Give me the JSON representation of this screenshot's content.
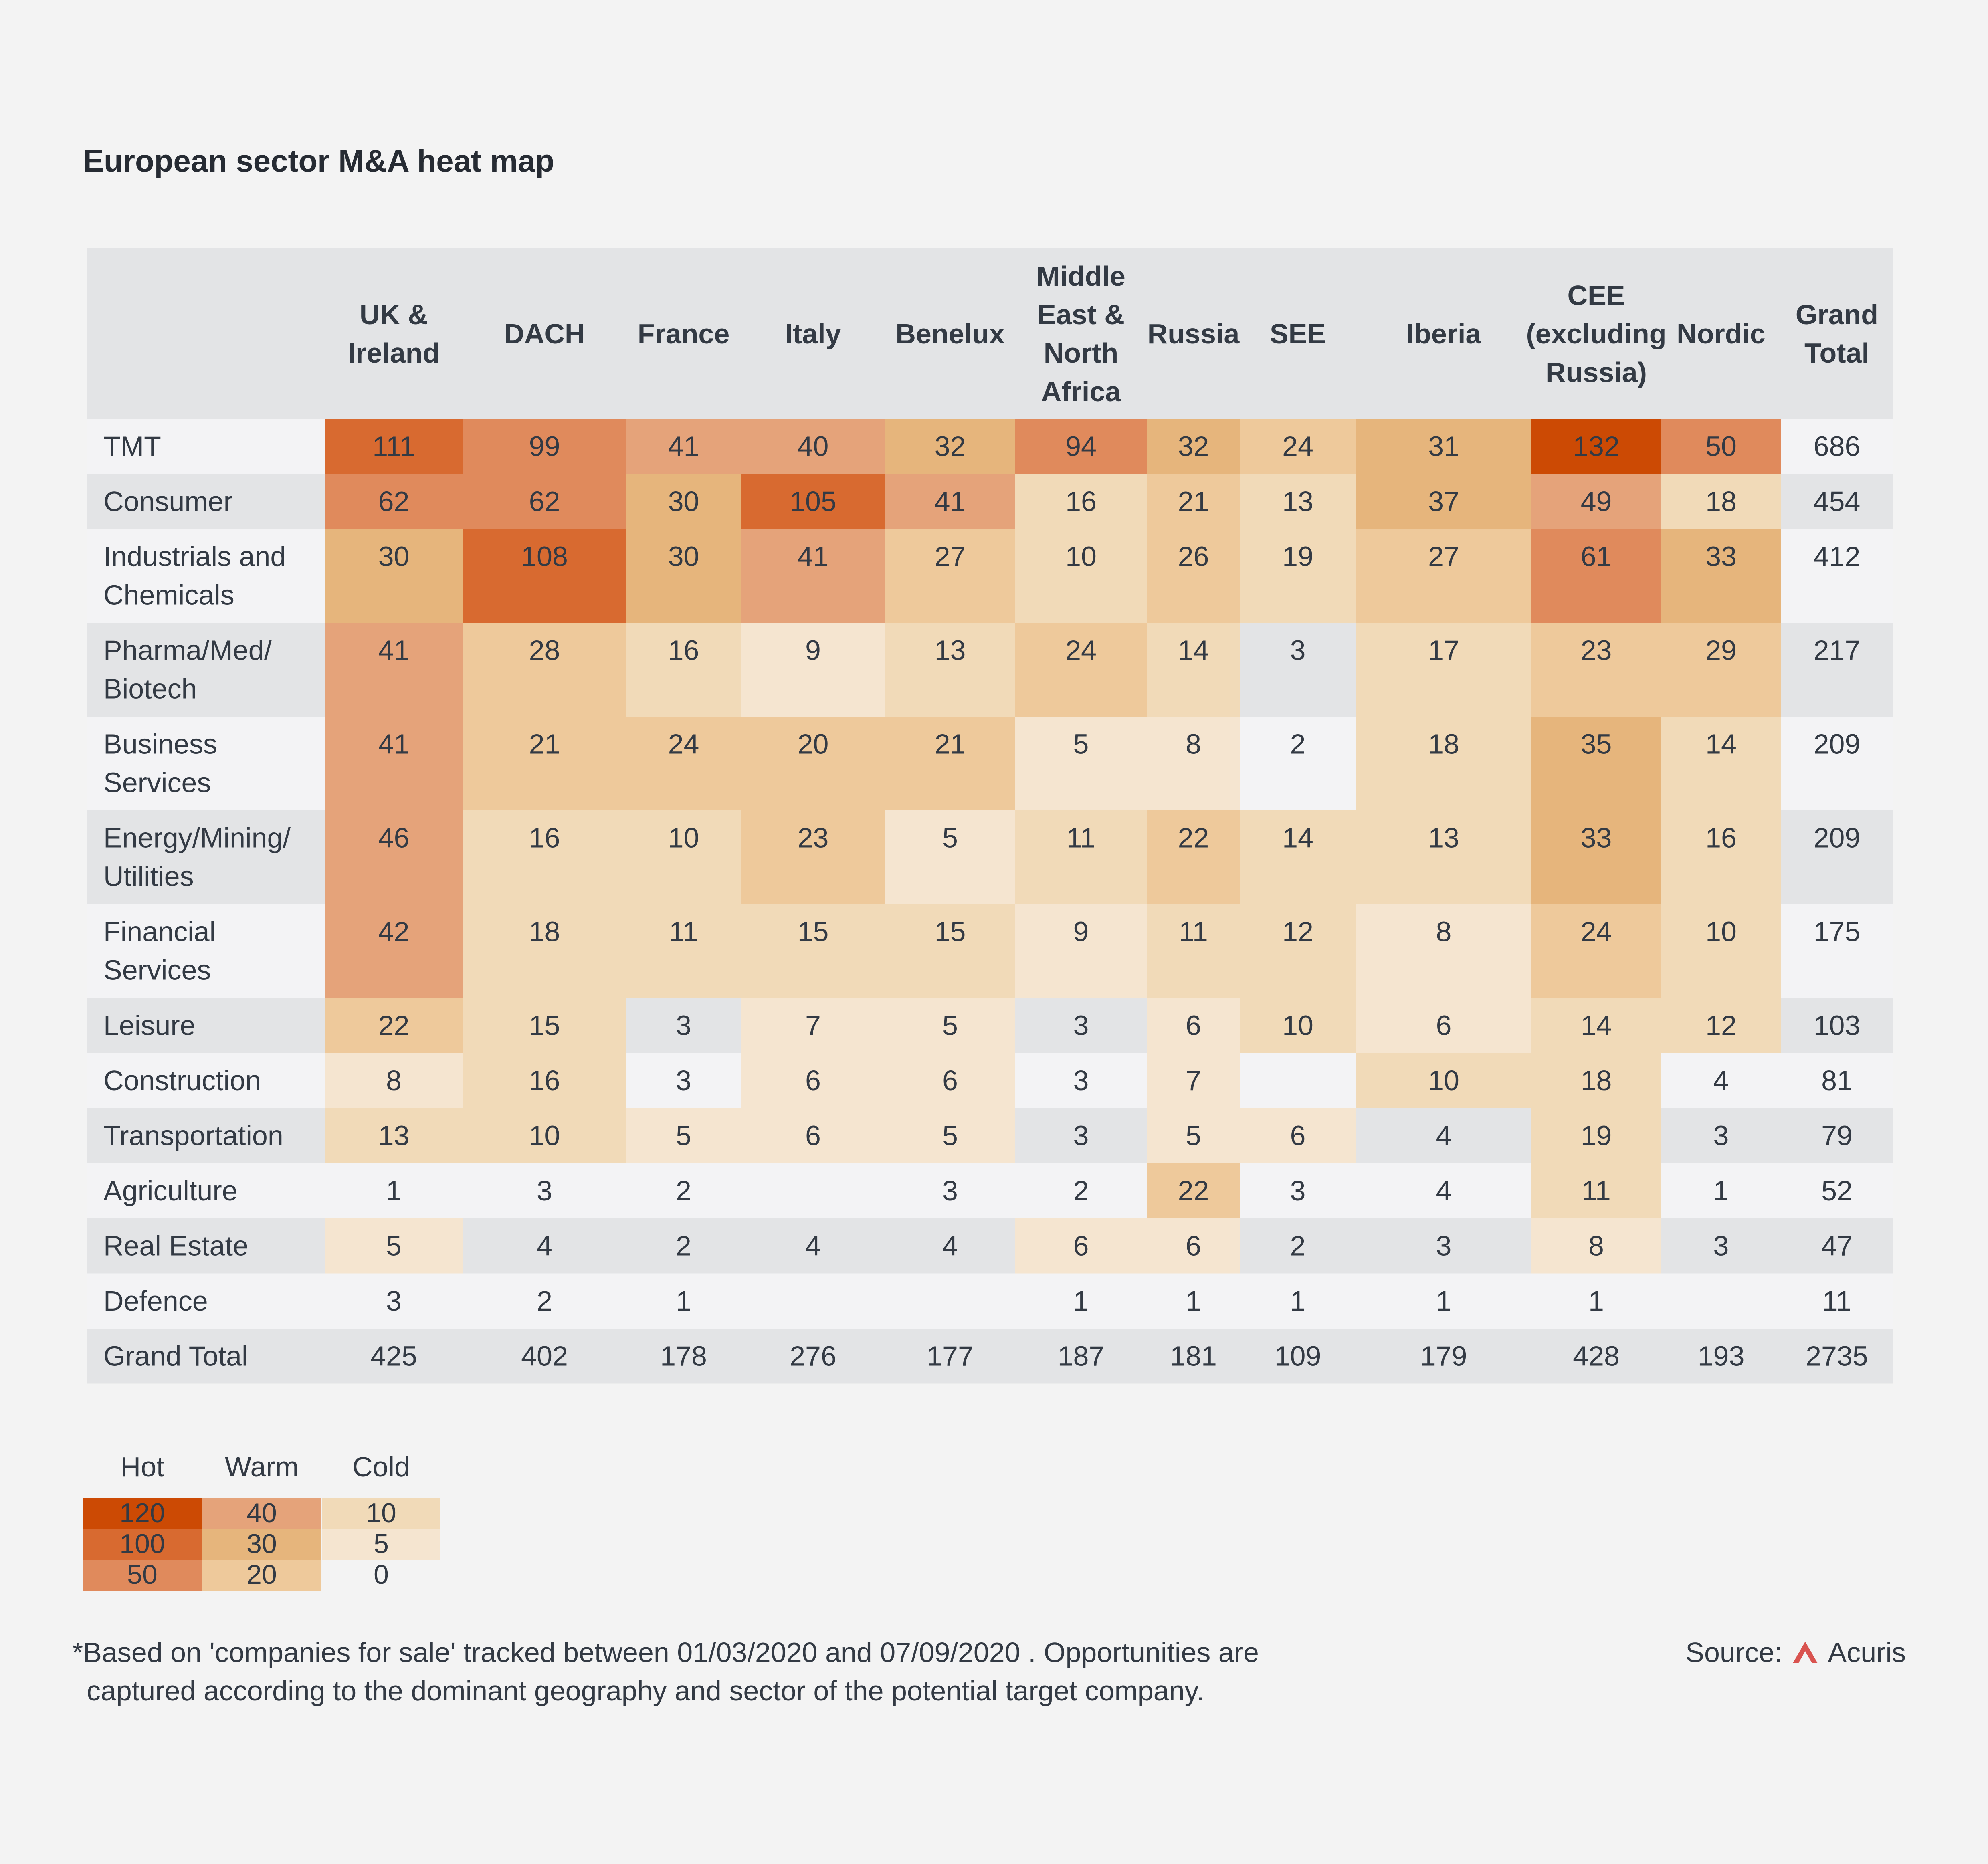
{
  "title": "European sector M&A heat map",
  "chart_data": {
    "type": "heatmap",
    "columns": [
      [
        "UK &",
        "Ireland"
      ],
      [
        "DACH"
      ],
      [
        "France"
      ],
      [
        "Italy"
      ],
      [
        "Benelux"
      ],
      [
        "Middle",
        "East &",
        "North",
        "Africa"
      ],
      [
        "Russia"
      ],
      [
        "SEE"
      ],
      [
        "Iberia"
      ],
      [
        "CEE",
        "(excluding",
        "Russia)"
      ],
      [
        "Nordic"
      ],
      [
        "Grand",
        "Total"
      ]
    ],
    "rows": [
      {
        "label": [
          "TMT"
        ],
        "values": [
          111,
          99,
          41,
          40,
          32,
          94,
          32,
          24,
          31,
          132,
          50
        ],
        "total": 686
      },
      {
        "label": [
          "Consumer"
        ],
        "values": [
          62,
          62,
          30,
          105,
          41,
          16,
          21,
          13,
          37,
          49,
          18
        ],
        "total": 454
      },
      {
        "label": [
          "Industrials and",
          "Chemicals"
        ],
        "values": [
          30,
          108,
          30,
          41,
          27,
          10,
          26,
          19,
          27,
          61,
          33
        ],
        "total": 412
      },
      {
        "label": [
          "Pharma/Med/",
          "Biotech"
        ],
        "values": [
          41,
          28,
          16,
          9,
          13,
          24,
          14,
          3,
          17,
          23,
          29
        ],
        "total": 217
      },
      {
        "label": [
          "Business",
          "Services"
        ],
        "values": [
          41,
          21,
          24,
          20,
          21,
          5,
          8,
          2,
          18,
          35,
          14
        ],
        "total": 209
      },
      {
        "label": [
          "Energy/Mining/",
          "Utilities"
        ],
        "values": [
          46,
          16,
          10,
          23,
          5,
          11,
          22,
          14,
          13,
          33,
          16
        ],
        "total": 209
      },
      {
        "label": [
          "Financial",
          "Services"
        ],
        "values": [
          42,
          18,
          11,
          15,
          15,
          9,
          11,
          12,
          8,
          24,
          10
        ],
        "total": 175
      },
      {
        "label": [
          "Leisure"
        ],
        "values": [
          22,
          15,
          3,
          7,
          5,
          3,
          6,
          10,
          6,
          14,
          12
        ],
        "total": 103
      },
      {
        "label": [
          "Construction"
        ],
        "values": [
          8,
          16,
          3,
          6,
          6,
          3,
          7,
          null,
          10,
          18,
          4
        ],
        "total": 81
      },
      {
        "label": [
          "Transportation"
        ],
        "values": [
          13,
          10,
          5,
          6,
          5,
          3,
          5,
          6,
          4,
          19,
          3
        ],
        "total": 79
      },
      {
        "label": [
          "Agriculture"
        ],
        "values": [
          1,
          3,
          2,
          null,
          3,
          2,
          22,
          3,
          4,
          11,
          1
        ],
        "total": 52
      },
      {
        "label": [
          "Real Estate"
        ],
        "values": [
          5,
          4,
          2,
          4,
          4,
          6,
          6,
          2,
          3,
          8,
          3
        ],
        "total": 47
      },
      {
        "label": [
          "Defence"
        ],
        "values": [
          3,
          2,
          1,
          null,
          null,
          1,
          1,
          1,
          1,
          1,
          null
        ],
        "total": 11
      }
    ],
    "grand_total": {
      "label": [
        "Grand Total"
      ],
      "values": [
        425,
        402,
        178,
        276,
        177,
        187,
        181,
        109,
        179,
        428,
        193
      ],
      "total": 2735
    },
    "scale": [
      {
        "threshold": 120,
        "color": "#cc4a04"
      },
      {
        "threshold": 100,
        "color": "#d86a30"
      },
      {
        "threshold": 50,
        "color": "#e08a5c"
      },
      {
        "threshold": 40,
        "color": "#e5a37a"
      },
      {
        "threshold": 30,
        "color": "#e6b57c"
      },
      {
        "threshold": 20,
        "color": "#eec99b"
      },
      {
        "threshold": 10,
        "color": "#f1dab8"
      },
      {
        "threshold": 5,
        "color": "#f5e5d0"
      },
      {
        "threshold": 0,
        "color": null
      }
    ]
  },
  "legend": {
    "headers": [
      "Hot",
      "Warm",
      "Cold"
    ],
    "cells": [
      [
        {
          "v": "120",
          "c": "#cc4a04"
        },
        {
          "v": "40",
          "c": "#e5a37a"
        },
        {
          "v": "10",
          "c": "#f1dab8"
        }
      ],
      [
        {
          "v": "100",
          "c": "#d86a30"
        },
        {
          "v": "30",
          "c": "#e6b57c"
        },
        {
          "v": "5",
          "c": "#f5e5d0"
        }
      ],
      [
        {
          "v": "50",
          "c": "#e08a5c"
        },
        {
          "v": "20",
          "c": "#eec99b"
        },
        {
          "v": "0",
          "c": "#f3f3f3"
        }
      ]
    ]
  },
  "footnote": {
    "line1": "*Based on 'companies for sale' tracked between 01/03/2020 and 07/09/2020 . Opportunities are",
    "line2": "captured according to the dominant geography and sector of the potential target company."
  },
  "source": {
    "label": "Source:",
    "brand": "Acuris"
  },
  "colors": {
    "stripe_dark": "#e3e4e6",
    "stripe_light": "#f3f3f5",
    "text": "#333a44",
    "brand": "#d9534f"
  }
}
